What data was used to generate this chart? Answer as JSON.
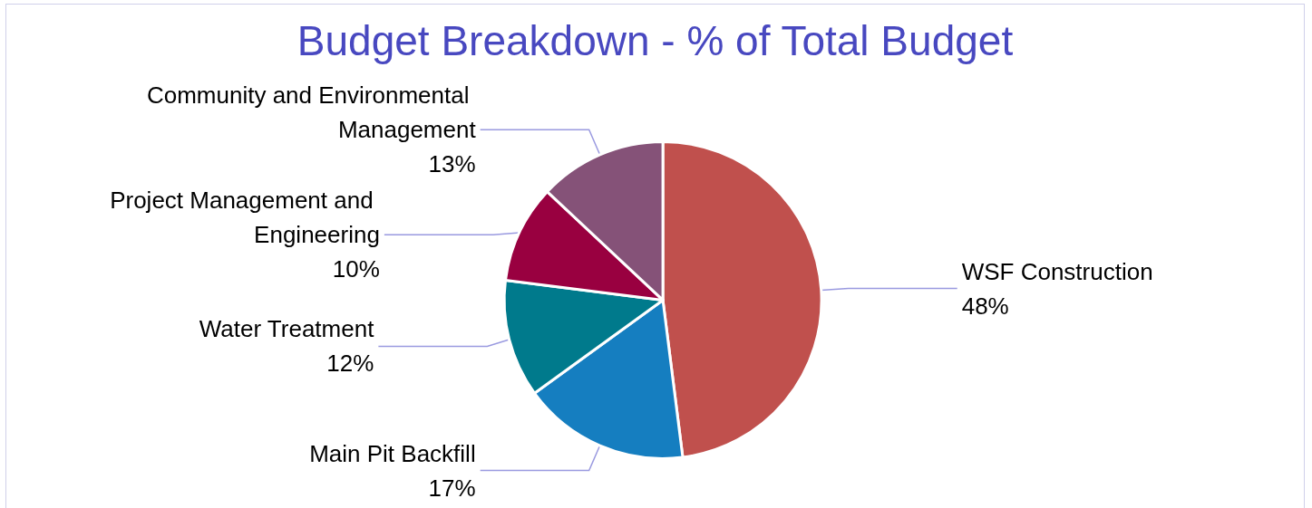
{
  "chart_data": {
    "type": "pie",
    "title": "Budget Breakdown - % of Total Budget",
    "categories": [
      "WSF Construction",
      "Main Pit Backfill",
      "Water Treatment",
      "Project Management and Engineering",
      "Community and Environmental Management"
    ],
    "values": [
      48,
      17,
      12,
      10,
      13
    ],
    "value_labels": [
      "48%",
      "17%",
      "12%",
      "10%",
      "13%"
    ],
    "colors": [
      "#c0504d",
      "#157ec0",
      "#007a8c",
      "#990040",
      "#855278"
    ],
    "legend": false
  }
}
